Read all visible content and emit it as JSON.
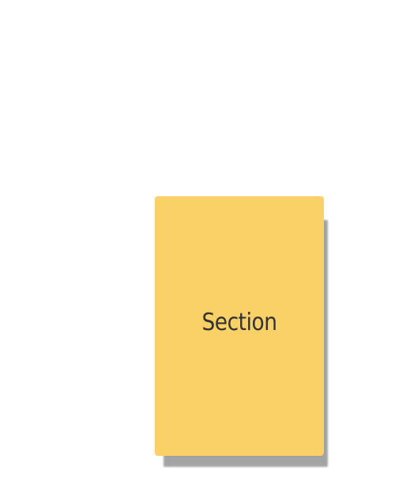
{
  "section_card": {
    "label": "Section",
    "color": "#f9d166",
    "text_color": "#333333",
    "shadow_color": "#9a9a9a"
  }
}
